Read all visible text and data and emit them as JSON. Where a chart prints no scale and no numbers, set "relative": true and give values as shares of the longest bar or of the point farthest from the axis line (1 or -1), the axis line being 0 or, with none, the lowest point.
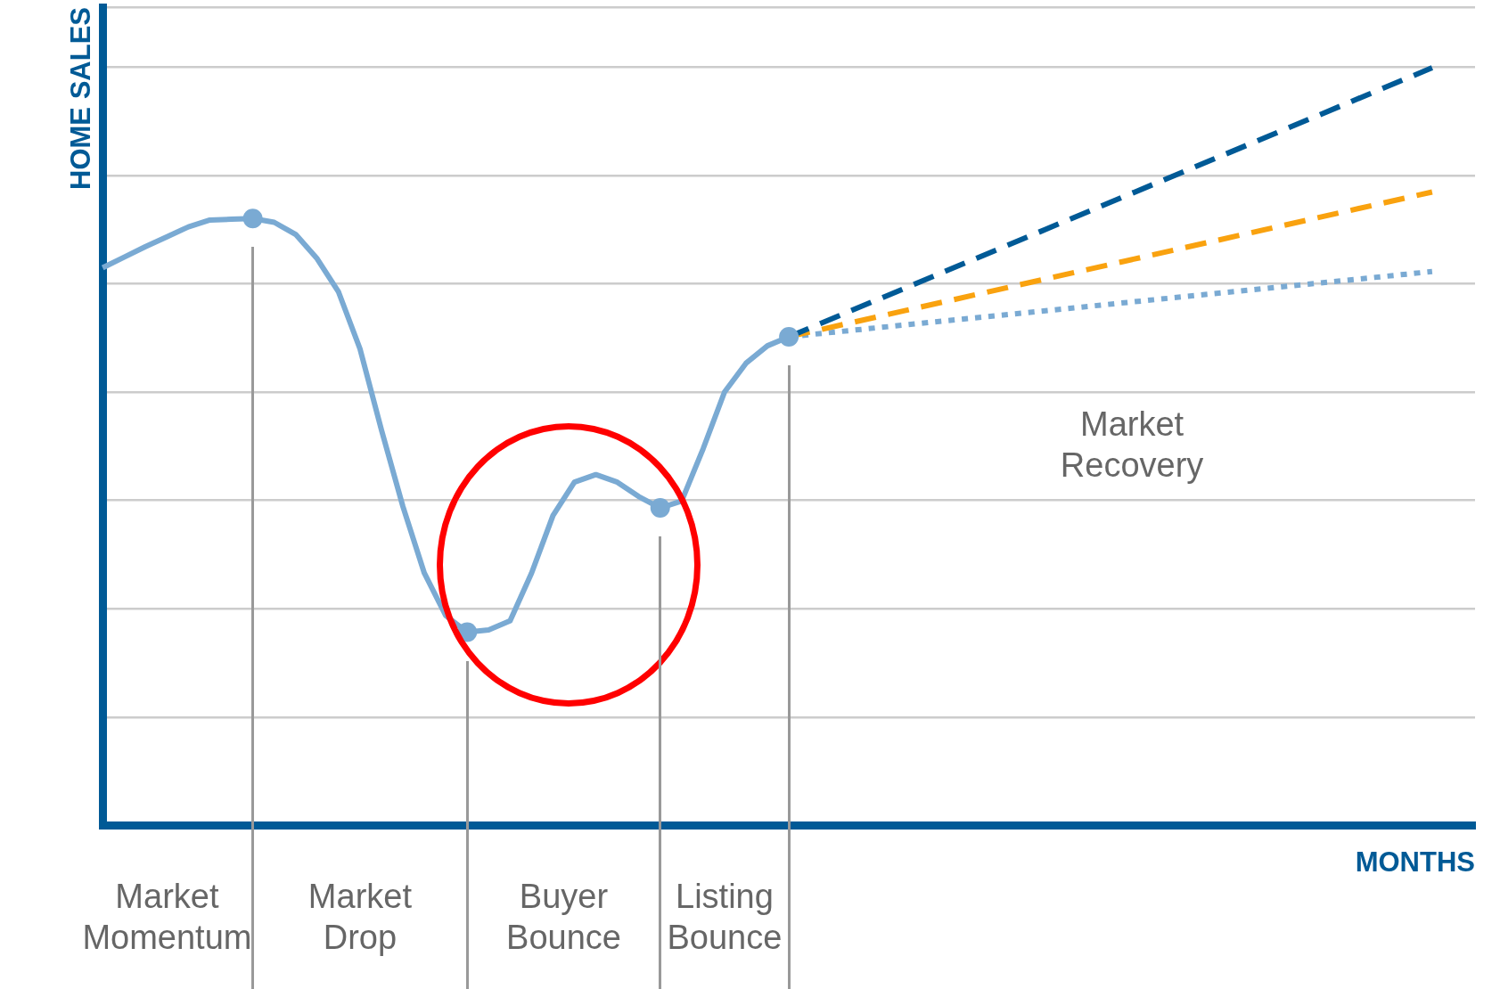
{
  "chart_data": {
    "type": "line",
    "relative": true,
    "xlabel": "MONTHS",
    "ylabel": "HOME SALES",
    "grid": "y",
    "legend": false,
    "categories": [
      null,
      null,
      null,
      null,
      null,
      null,
      null,
      null,
      null,
      null,
      null,
      null,
      null,
      null,
      null,
      null,
      null,
      null,
      null,
      null,
      null,
      null,
      null,
      null,
      null,
      null,
      null,
      null,
      null,
      null,
      null,
      null,
      null,
      null,
      null,
      null,
      null,
      null,
      null,
      null,
      null,
      null,
      null,
      null,
      null,
      null,
      null,
      null,
      null,
      null,
      null,
      null,
      null,
      null,
      null,
      null,
      null,
      null,
      null,
      null,
      null,
      null,
      null,
      null,
      null
    ],
    "series": [
      {
        "color": "#7aaad3",
        "line_style": "solid",
        "values": [
          0.736,
          0.75,
          0.764,
          0.777,
          0.79,
          0.799,
          0.8,
          0.801,
          0.796,
          0.78,
          0.748,
          0.704,
          0.629,
          0.522,
          0.421,
          0.333,
          0.277,
          0.255,
          0.258,
          0.27,
          0.333,
          0.409,
          0.453,
          0.463,
          0.453,
          0.434,
          0.419,
          0.428,
          0.497,
          0.572,
          0.61,
          0.633,
          0.645,
          null,
          null,
          null,
          null,
          null,
          null,
          null,
          null,
          null,
          null,
          null,
          null,
          null,
          null,
          null,
          null,
          null,
          null,
          null,
          null,
          null,
          null,
          null,
          null,
          null,
          null,
          null,
          null,
          null,
          null,
          null,
          null
        ]
      },
      {
        "color": "#005a96",
        "line_style": "dashed",
        "values": [
          null,
          null,
          null,
          null,
          null,
          null,
          null,
          null,
          null,
          null,
          null,
          null,
          null,
          null,
          null,
          null,
          null,
          null,
          null,
          null,
          null,
          null,
          null,
          null,
          null,
          null,
          null,
          null,
          null,
          null,
          null,
          null,
          0.645,
          null,
          null,
          null,
          null,
          null,
          null,
          null,
          null,
          null,
          null,
          null,
          null,
          null,
          null,
          null,
          null,
          null,
          null,
          null,
          null,
          null,
          null,
          null,
          null,
          null,
          null,
          null,
          null,
          null,
          1,
          null,
          null
        ]
      },
      {
        "color": "#f9a20f",
        "line_style": "dashed",
        "values": [
          null,
          null,
          null,
          null,
          null,
          null,
          null,
          null,
          null,
          null,
          null,
          null,
          null,
          null,
          null,
          null,
          null,
          null,
          null,
          null,
          null,
          null,
          null,
          null,
          null,
          null,
          null,
          null,
          null,
          null,
          null,
          null,
          0.645,
          null,
          null,
          null,
          null,
          null,
          null,
          null,
          null,
          null,
          null,
          null,
          null,
          null,
          null,
          null,
          null,
          null,
          null,
          null,
          null,
          null,
          null,
          null,
          null,
          null,
          null,
          null,
          null,
          null,
          0.836,
          null,
          null
        ]
      },
      {
        "color": "#7aaad3",
        "line_style": "dotted",
        "values": [
          null,
          null,
          null,
          null,
          null,
          null,
          null,
          null,
          null,
          null,
          null,
          null,
          null,
          null,
          null,
          null,
          null,
          null,
          null,
          null,
          null,
          null,
          null,
          null,
          null,
          null,
          null,
          null,
          null,
          null,
          null,
          null,
          0.645,
          null,
          null,
          null,
          null,
          null,
          null,
          null,
          null,
          null,
          null,
          null,
          null,
          null,
          null,
          null,
          null,
          null,
          null,
          null,
          null,
          null,
          null,
          null,
          null,
          null,
          null,
          null,
          null,
          null,
          0.731,
          null,
          null
        ]
      }
    ],
    "annotations": [
      "Market Momentum",
      "Market Drop",
      "Buyer Bounce",
      "Listing Bounce",
      "Market Recovery"
    ]
  }
}
